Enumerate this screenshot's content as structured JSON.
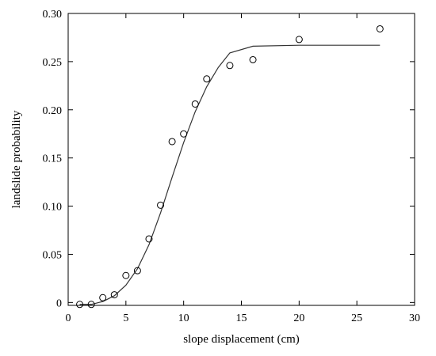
{
  "chart_data": {
    "type": "scatter",
    "title": "",
    "xlabel": "slope displacement (cm)",
    "ylabel": "landslide probability",
    "xlim": [
      0,
      30
    ],
    "ylim": [
      -0.003,
      0.3
    ],
    "x_ticks": [
      0,
      5,
      10,
      15,
      20,
      25,
      30
    ],
    "y_ticks": [
      0,
      0.05,
      0.1,
      0.15,
      0.2,
      0.25,
      0.3
    ],
    "x_tick_labels": [
      "0",
      "5",
      "10",
      "15",
      "20",
      "25",
      "30"
    ],
    "y_tick_labels": [
      "0",
      "0.05",
      "0.10",
      "0.15",
      "0.20",
      "0.25",
      "0.30"
    ],
    "grid": false,
    "legend": "none",
    "series": [
      {
        "kind": "points",
        "marker": "open-circle",
        "x": [
          1,
          2,
          3,
          4,
          5,
          6,
          7,
          8,
          9,
          10,
          11,
          12,
          14,
          16,
          20,
          27
        ],
        "y": [
          -0.002,
          -0.002,
          0.005,
          0.008,
          0.028,
          0.033,
          0.066,
          0.101,
          0.167,
          0.175,
          0.206,
          0.232,
          0.246,
          0.252,
          0.273,
          0.284
        ]
      },
      {
        "kind": "fitted-line",
        "x": [
          1,
          2,
          3,
          4,
          5,
          6,
          7,
          8,
          9,
          10,
          11,
          12,
          13,
          14,
          16,
          20,
          27
        ],
        "y": [
          -0.002,
          -0.002,
          0.001,
          0.007,
          0.018,
          0.035,
          0.06,
          0.093,
          0.13,
          0.166,
          0.198,
          0.224,
          0.244,
          0.259,
          0.266,
          0.267,
          0.267
        ]
      }
    ]
  }
}
